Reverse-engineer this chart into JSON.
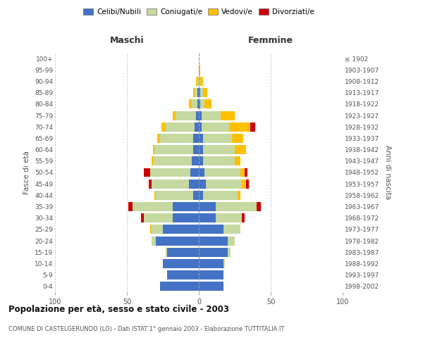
{
  "age_groups": [
    "0-4",
    "5-9",
    "10-14",
    "15-19",
    "20-24",
    "25-29",
    "30-34",
    "35-39",
    "40-44",
    "45-49",
    "50-54",
    "55-59",
    "60-64",
    "65-69",
    "70-74",
    "75-79",
    "80-84",
    "85-89",
    "90-94",
    "95-99",
    "100+"
  ],
  "birth_years": [
    "1998-2002",
    "1993-1997",
    "1988-1992",
    "1983-1987",
    "1978-1982",
    "1973-1977",
    "1968-1972",
    "1963-1967",
    "1958-1962",
    "1953-1957",
    "1948-1952",
    "1943-1947",
    "1938-1942",
    "1933-1937",
    "1928-1932",
    "1923-1927",
    "1918-1922",
    "1913-1917",
    "1908-1912",
    "1903-1907",
    "≤ 1902"
  ],
  "maschi": {
    "celibi": [
      27,
      22,
      25,
      22,
      30,
      25,
      18,
      18,
      4,
      7,
      6,
      5,
      4,
      4,
      3,
      2,
      1,
      1,
      0,
      0,
      0
    ],
    "coniugati": [
      0,
      0,
      0,
      1,
      3,
      8,
      20,
      28,
      26,
      26,
      28,
      27,
      27,
      23,
      20,
      14,
      4,
      2,
      1,
      0,
      0
    ],
    "vedovi": [
      0,
      0,
      0,
      0,
      0,
      1,
      0,
      0,
      1,
      0,
      0,
      1,
      1,
      2,
      3,
      2,
      2,
      1,
      1,
      0,
      0
    ],
    "divorziati": [
      0,
      0,
      0,
      0,
      0,
      0,
      2,
      3,
      0,
      2,
      4,
      0,
      0,
      0,
      0,
      0,
      0,
      0,
      0,
      0,
      0
    ]
  },
  "femmine": {
    "nubili": [
      17,
      17,
      17,
      20,
      20,
      17,
      12,
      12,
      3,
      5,
      4,
      3,
      3,
      3,
      2,
      2,
      1,
      1,
      0,
      0,
      0
    ],
    "coniugate": [
      0,
      0,
      1,
      2,
      5,
      12,
      18,
      28,
      24,
      25,
      25,
      22,
      22,
      20,
      19,
      13,
      3,
      2,
      1,
      0,
      0
    ],
    "vedove": [
      0,
      0,
      0,
      0,
      0,
      0,
      0,
      0,
      2,
      3,
      3,
      4,
      8,
      8,
      15,
      10,
      5,
      3,
      2,
      1,
      0
    ],
    "divorziate": [
      0,
      0,
      0,
      0,
      0,
      0,
      2,
      3,
      0,
      2,
      2,
      0,
      0,
      0,
      3,
      0,
      0,
      0,
      0,
      0,
      0
    ]
  },
  "colors": {
    "celibi_nubili": "#4472c4",
    "coniugati": "#c5d9a0",
    "vedovi": "#ffc000",
    "divorziati": "#cc0000"
  },
  "xlim": 100,
  "title": "Popolazione per età, sesso e stato civile - 2003",
  "subtitle": "COMUNE DI CASTELGERUNDO (LO) - Dati ISTAT 1° gennaio 2003 - Elaborazione TUTTITALIA.IT",
  "ylabel_left": "Fasce di età",
  "ylabel_right": "Anni di nascita",
  "xlabel_left": "Maschi",
  "xlabel_right": "Femmine",
  "legend_labels": [
    "Celibi/Nubili",
    "Coniugati/e",
    "Vedovi/e",
    "Divorziati/e"
  ],
  "background_color": "#ffffff",
  "grid_color": "#cccccc"
}
